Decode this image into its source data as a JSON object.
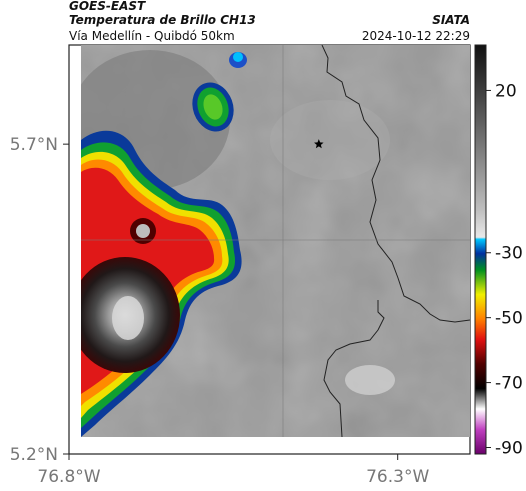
{
  "header": {
    "satellite": "GOES-EAST",
    "product": "Temperatura de Brillo CH13",
    "region": "Vía Medellín - Quibdó 50km",
    "agency": "SIATA",
    "timestamp": "2024-10-12 22:29"
  },
  "axes": {
    "x_ticks": [
      {
        "value": -76.8,
        "label": "76.8°W"
      },
      {
        "value": -76.3,
        "label": "76.3°W"
      }
    ],
    "y_ticks": [
      {
        "value": 5.2,
        "label": "5.2°N"
      },
      {
        "value": 5.7,
        "label": "5.7°N"
      }
    ],
    "xlim": [
      -76.8,
      -76.19
    ],
    "ylim": [
      5.2,
      5.86
    ]
  },
  "colorbar": {
    "ticks": [
      {
        "value": 20,
        "label": "20"
      },
      {
        "value": -30,
        "label": "-30"
      },
      {
        "value": -50,
        "label": "-50"
      },
      {
        "value": -70,
        "label": "-70"
      },
      {
        "value": -90,
        "label": "-90"
      }
    ],
    "range": [
      -92,
      34
    ]
  },
  "marker": {
    "name": "star-marker",
    "lon": -76.42,
    "lat": 5.7
  },
  "colors": {
    "grey_background": "#9a9a9a",
    "border_line": "#222222",
    "star": "#000000"
  }
}
